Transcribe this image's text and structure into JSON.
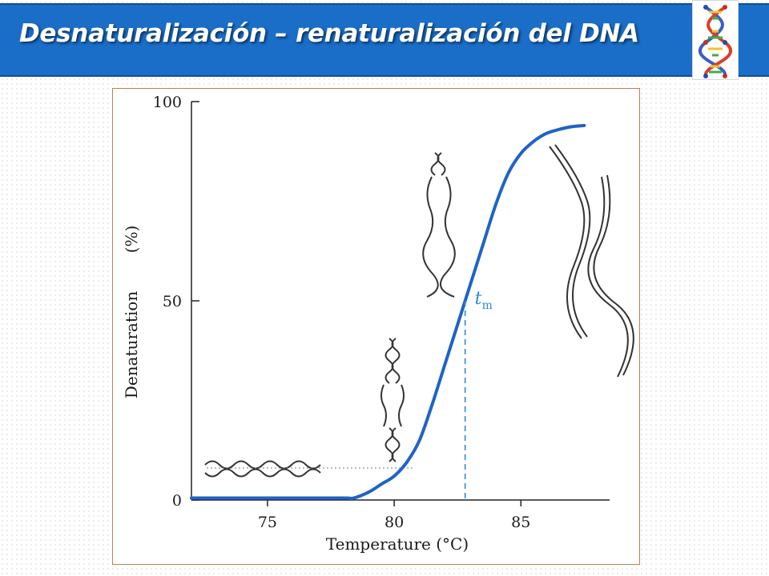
{
  "slide": {
    "title": "Desnaturalización – renaturalización del DNA",
    "logo_icon": "dna-double-helix-icon",
    "accent_color": "#1a6ec8"
  },
  "chart_data": {
    "type": "line",
    "title": "",
    "xlabel": "Temperature (°C)",
    "ylabel": "Denaturation",
    "ylabel_unit": "(%)",
    "xlim": [
      72,
      88.5
    ],
    "ylim": [
      0,
      100
    ],
    "x_ticks": [
      75,
      80,
      85
    ],
    "y_ticks": [
      0,
      50,
      100
    ],
    "grid": false,
    "series": [
      {
        "color": "#1f63c7",
        "x": [
          72,
          74,
          76,
          78,
          78.4,
          79,
          79.5,
          80,
          80.5,
          81,
          81.5,
          82,
          82.5,
          83,
          83.5,
          84,
          84.5,
          85,
          85.5,
          86,
          86.5,
          87,
          87.5
        ],
        "y": [
          0.5,
          0.5,
          0.5,
          0.5,
          0.5,
          2,
          4,
          6,
          9.5,
          15,
          24,
          34,
          44,
          54,
          64,
          74,
          82,
          87,
          90,
          92,
          93,
          93.7,
          94
        ]
      }
    ],
    "annotations": [
      {
        "label": "t",
        "subscript": "m",
        "x": 82.8,
        "y": 50,
        "color": "#2a8bd6"
      }
    ],
    "illustrations": [
      {
        "icon": "intact-dna-helix-icon",
        "stage": "native"
      },
      {
        "icon": "partially-melted-dna-icon",
        "stage": "onset"
      },
      {
        "icon": "mostly-melted-dna-icon",
        "stage": "midpoint"
      },
      {
        "icon": "separated-single-strands-icon",
        "stage": "denatured"
      }
    ]
  }
}
